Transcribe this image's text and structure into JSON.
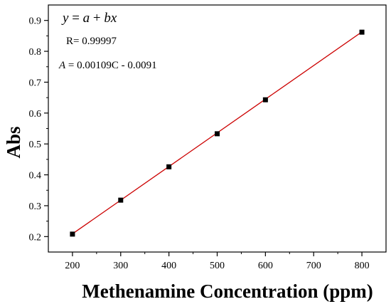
{
  "chart_data": {
    "type": "scatter",
    "xlabel": "Methenamine Concentration (ppm)",
    "ylabel": "Abs",
    "xlim": [
      150,
      850
    ],
    "ylim": [
      0.15,
      0.95
    ],
    "x_ticks": [
      200,
      300,
      400,
      500,
      600,
      700,
      800
    ],
    "y_ticks": [
      0.2,
      0.3,
      0.4,
      0.5,
      0.6,
      0.7,
      0.8,
      0.9
    ],
    "x_tick_labels": [
      "200",
      "300",
      "400",
      "500",
      "600",
      "700",
      "800"
    ],
    "y_tick_labels": [
      "0.2",
      "0.3",
      "0.4",
      "0.5",
      "0.6",
      "0.7",
      "0.8",
      "0.9"
    ],
    "grid": false,
    "series": [
      {
        "type": "scatter",
        "marker": "square",
        "color": "#000000",
        "x": [
          200,
          300,
          400,
          500,
          600,
          800
        ],
        "y": [
          0.208,
          0.318,
          0.426,
          0.533,
          0.643,
          0.862
        ]
      },
      {
        "type": "line",
        "color": "#cc0000",
        "fit": {
          "slope": 0.00109,
          "intercept": -0.0091
        },
        "x": [
          200,
          800
        ]
      }
    ],
    "annotations": {
      "model": {
        "y": "y",
        "eq": " = ",
        "a": "a",
        "plus": " + ",
        "bx": "bx"
      },
      "r_value": "R= 0.99997",
      "equation": {
        "var": "A",
        "rest": " = 0.00109C - 0.0091"
      }
    }
  },
  "colors": {
    "axis": "#000000",
    "fit_line": "#cc0000",
    "marker": "#000000"
  }
}
